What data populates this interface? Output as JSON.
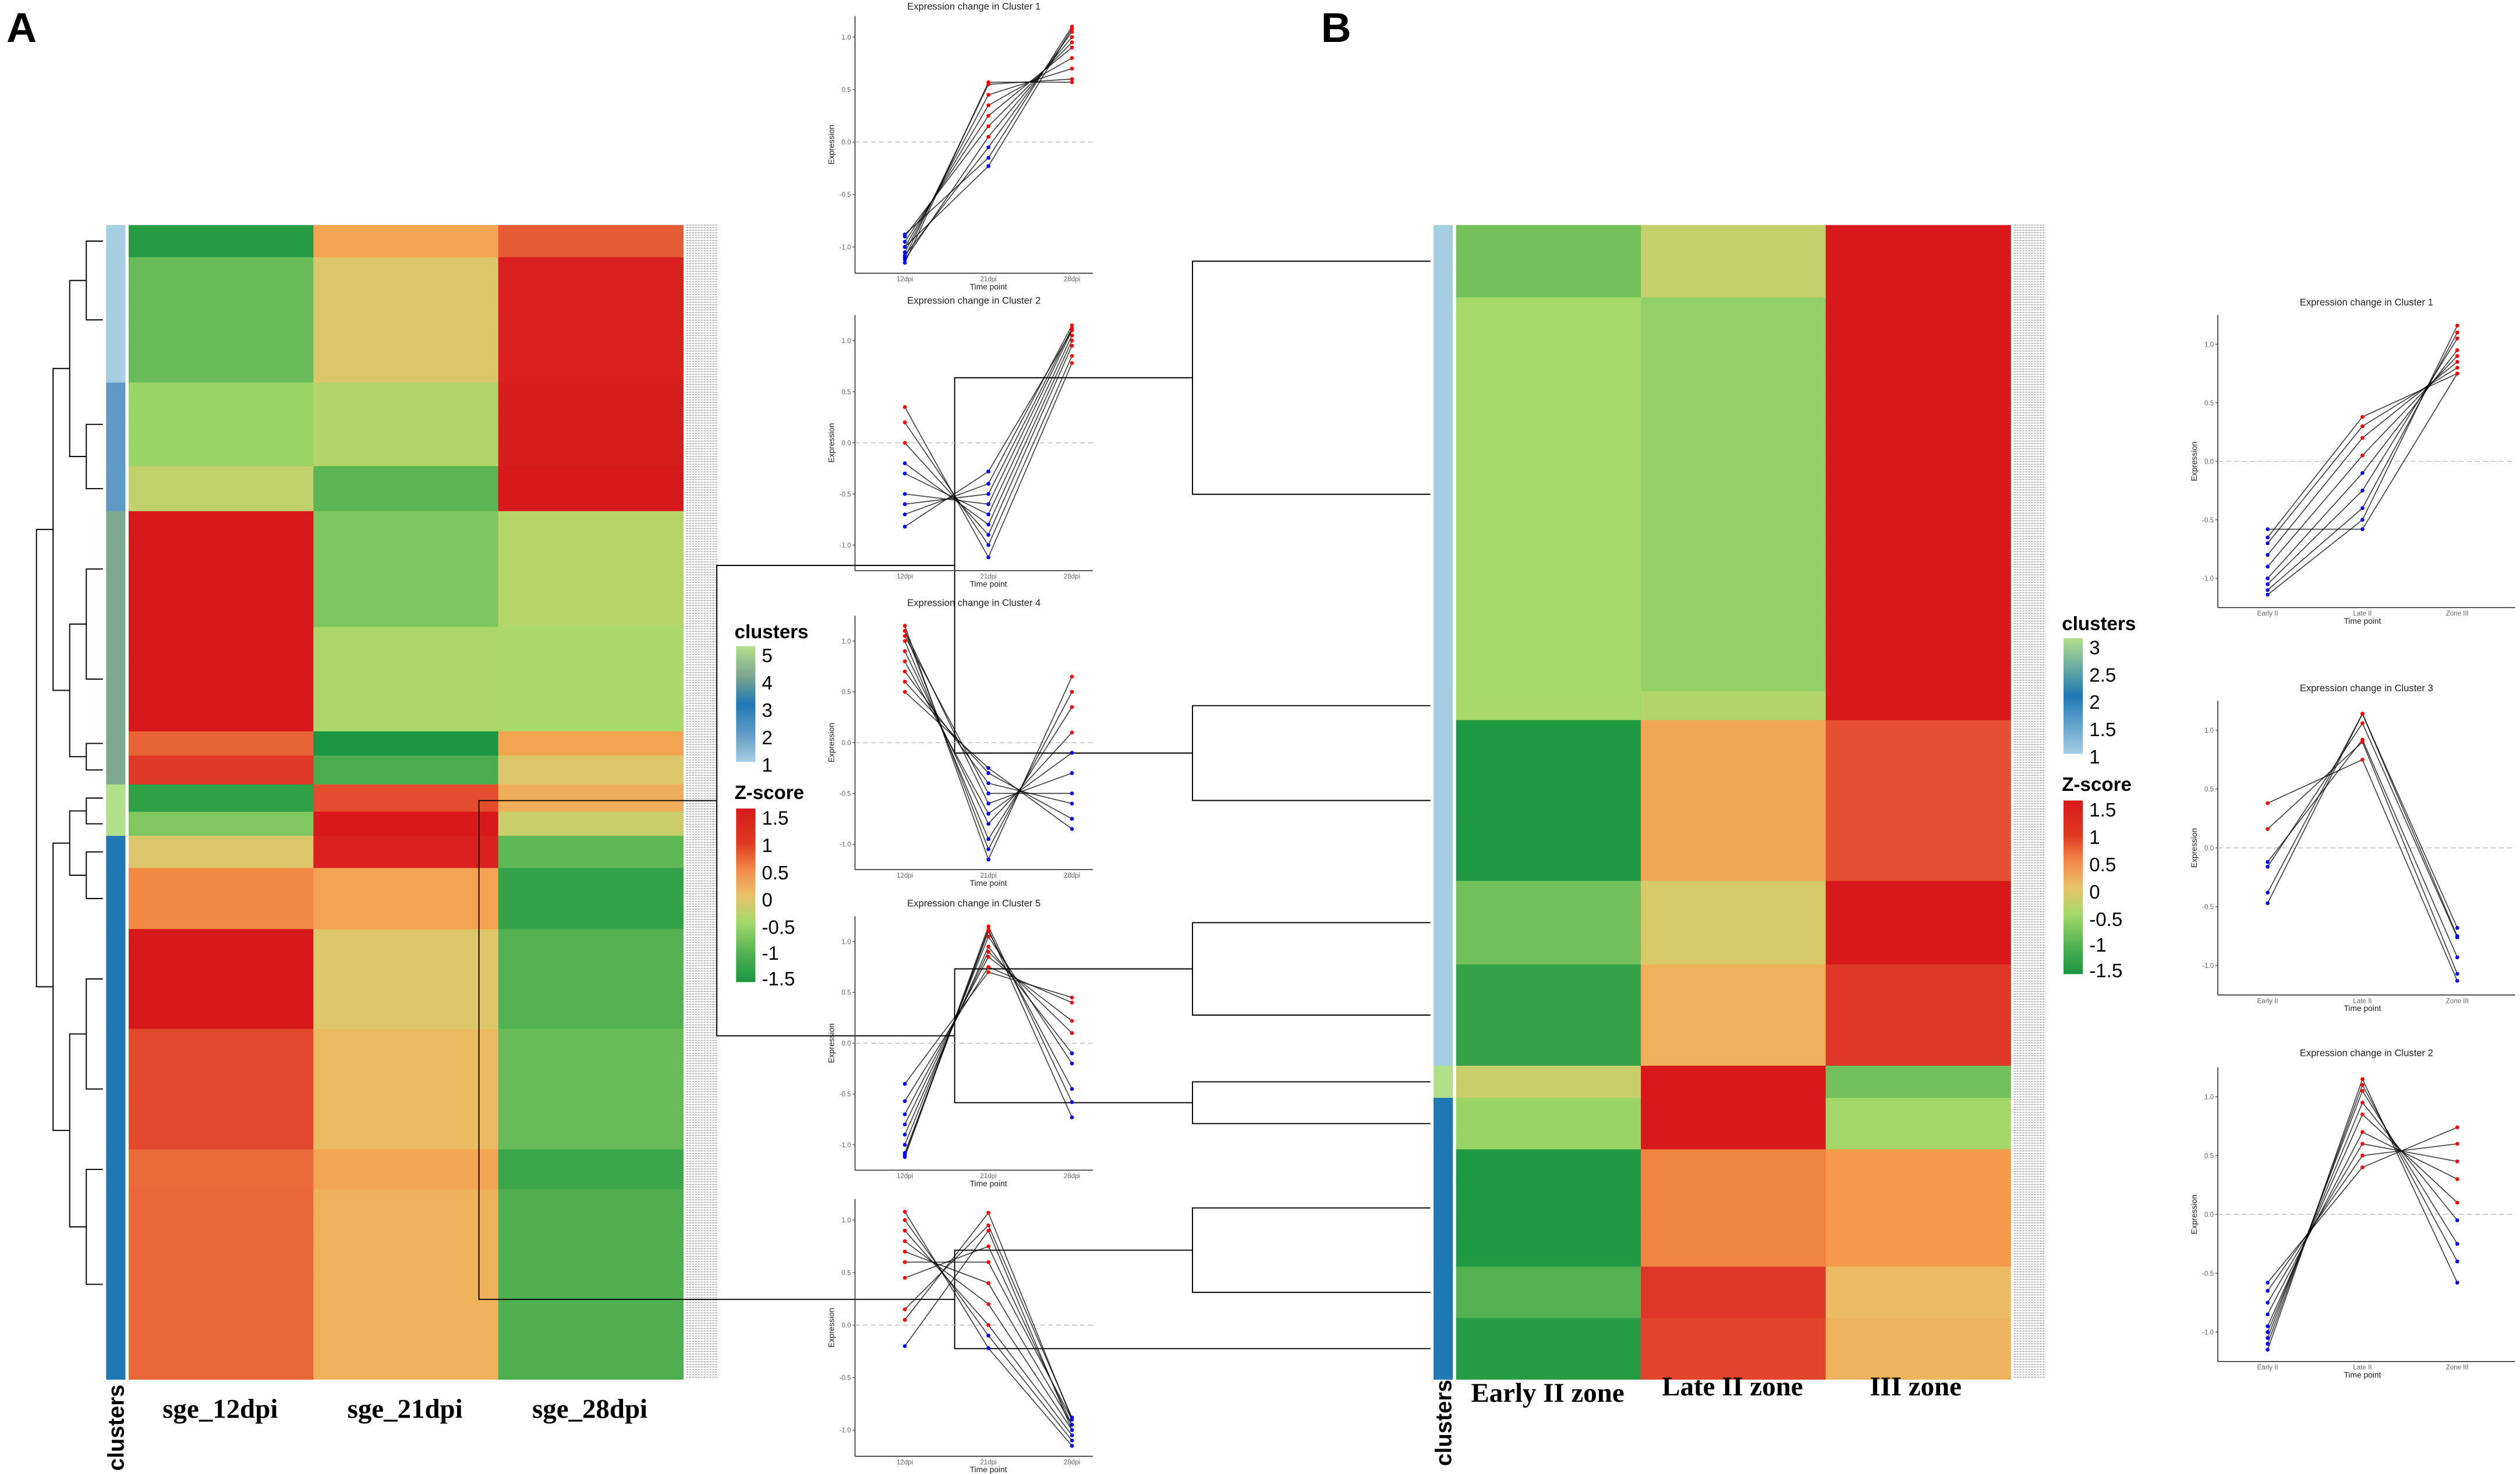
{
  "panels": {
    "a": "A",
    "b": "B"
  },
  "heatmap_a": {
    "columns": [
      "sge_12dpi",
      "sge_21dpi",
      "sge_28dpi"
    ],
    "cluster_axis_label": "clusters",
    "rows": [
      {
        "cluster": 1,
        "span": 20,
        "z": [
          -1.3,
          0.4,
          1.0
        ]
      },
      {
        "cluster": 1,
        "span": 78,
        "z": [
          -1.0,
          0.0,
          1.2
        ]
      },
      {
        "cluster": 2,
        "span": 52,
        "z": [
          -0.8,
          -0.5,
          1.4
        ]
      },
      {
        "cluster": 2,
        "span": 28,
        "z": [
          -0.3,
          -1.2,
          1.3
        ]
      },
      {
        "cluster": 4,
        "span": 72,
        "z": [
          1.5,
          -0.8,
          -0.6
        ]
      },
      {
        "cluster": 4,
        "span": 65,
        "z": [
          1.5,
          -0.6,
          -0.5
        ]
      },
      {
        "cluster": 4,
        "span": 15,
        "z": [
          0.9,
          -1.4,
          0.4
        ]
      },
      {
        "cluster": 4,
        "span": 18,
        "z": [
          1.0,
          -1.2,
          0.0
        ]
      },
      {
        "cluster": 5,
        "span": 17,
        "z": [
          -1.3,
          0.9,
          0.3
        ]
      },
      {
        "cluster": 5,
        "span": 15,
        "z": [
          -0.9,
          1.4,
          -0.4
        ]
      },
      {
        "cluster": 3,
        "span": 20,
        "z": [
          0.0,
          1.2,
          -1.0
        ]
      },
      {
        "cluster": 3,
        "span": 38,
        "z": [
          0.7,
          0.6,
          -1.4
        ]
      },
      {
        "cluster": 3,
        "span": 62,
        "z": [
          1.2,
          -0.1,
          -1.0
        ]
      },
      {
        "cluster": 3,
        "span": 75,
        "z": [
          1.1,
          0.0,
          -1.0
        ]
      },
      {
        "cluster": 3,
        "span": 25,
        "z": [
          0.8,
          0.5,
          -1.4
        ]
      },
      {
        "cluster": 3,
        "span": 118,
        "z": [
          1.0,
          0.2,
          -1.1
        ]
      }
    ],
    "legend": {
      "clusters_title": "clusters",
      "clusters_ticks": [
        "5",
        "4",
        "3",
        "2",
        "1"
      ],
      "zscore_title": "Z-score",
      "zscore_ticks": [
        "1.5",
        "1",
        "0.5",
        "0",
        "-0.5",
        "-1",
        "-1.5"
      ]
    }
  },
  "heatmap_b": {
    "columns": [
      "Early II zone",
      "Late II zone",
      "III zone"
    ],
    "cluster_axis_label": "clusters",
    "rows": [
      {
        "cluster": 1,
        "span": 45,
        "z": [
          -0.8,
          -0.4,
          1.5
        ]
      },
      {
        "cluster": 1,
        "span": 245,
        "z": [
          -0.6,
          -0.6,
          1.5
        ]
      },
      {
        "cluster": 1,
        "span": 18,
        "z": [
          -0.7,
          -0.5,
          1.5
        ]
      },
      {
        "cluster": 1,
        "span": 100,
        "z": [
          -1.4,
          0.3,
          1.0
        ]
      },
      {
        "cluster": 1,
        "span": 52,
        "z": [
          -1.0,
          -0.1,
          1.3
        ]
      },
      {
        "cluster": 1,
        "span": 63,
        "z": [
          -1.2,
          0.2,
          1.2
        ]
      },
      {
        "cluster": 3,
        "span": 20,
        "z": [
          -0.3,
          1.5,
          -1.0
        ]
      },
      {
        "cluster": 2,
        "span": 32,
        "z": [
          -0.8,
          1.4,
          -0.5
        ]
      },
      {
        "cluster": 2,
        "span": 73,
        "z": [
          -1.4,
          0.6,
          0.6
        ]
      },
      {
        "cluster": 2,
        "span": 32,
        "z": [
          -1.2,
          1.2,
          0.0
        ]
      },
      {
        "cluster": 2,
        "span": 38,
        "z": [
          -1.3,
          1.0,
          0.3
        ]
      }
    ],
    "legend": {
      "clusters_title": "clusters",
      "clusters_ticks": [
        "3",
        "2.5",
        "2",
        "1.5",
        "1"
      ],
      "zscore_title": "Z-score",
      "zscore_ticks": [
        "1.5",
        "1",
        "0.5",
        "0",
        "-0.5",
        "-1",
        "-1.5"
      ]
    }
  },
  "colors": {
    "z_low": "#1a9641",
    "z_midlow": "#a6d96a",
    "z_mid": "#e8c36a",
    "z_midhigh": "#f59a4a",
    "z_high": "#d7191c",
    "cluster_1": "#a6cee3",
    "cluster_2": "#5f9ac4",
    "cluster_3": "#1f78b4",
    "cluster_4": "#7fa890",
    "cluster_5": "#b2df8a",
    "b_cluster_1": "#a6cee3",
    "b_cluster_2": "#1f78b4",
    "b_cluster_3": "#b2df8a",
    "point_up": "#ff0000",
    "point_down": "#0000ff"
  },
  "chart_data": [
    {
      "type": "line",
      "panel": "A",
      "title": "Expression change in Cluster 1",
      "xlabel": "Time point",
      "ylabel": "Expression",
      "x": [
        "12dpi",
        "21dpi",
        "28dpi"
      ],
      "yticks": [
        "1.0",
        "0.5",
        "0.0",
        "-0.5",
        "-1.0"
      ],
      "ylim": [
        -1.25,
        1.2
      ],
      "lines": [
        [
          -1.15,
          0.57,
          0.57
        ],
        [
          -1.1,
          0.55,
          0.6
        ],
        [
          -1.05,
          0.45,
          0.7
        ],
        [
          -1.0,
          0.35,
          0.8
        ],
        [
          -0.95,
          0.25,
          0.9
        ],
        [
          -0.9,
          0.15,
          0.95
        ],
        [
          -1.12,
          0.05,
          1.0
        ],
        [
          -1.08,
          -0.05,
          1.05
        ],
        [
          -0.88,
          -0.15,
          1.1
        ],
        [
          -1.0,
          -0.23,
          1.08
        ]
      ]
    },
    {
      "type": "line",
      "panel": "A",
      "title": "Expression change in Cluster 2",
      "xlabel": "Time point",
      "ylabel": "Expression",
      "x": [
        "12dpi",
        "21dpi",
        "28dpi"
      ],
      "yticks": [
        "1.0",
        "0.5",
        "0.0",
        "-0.5",
        "-1.0"
      ],
      "ylim": [
        -1.25,
        1.25
      ],
      "lines": [
        [
          0.35,
          -1.12,
          0.78
        ],
        [
          0.2,
          -1.0,
          0.85
        ],
        [
          0.0,
          -0.9,
          0.95
        ],
        [
          -0.2,
          -0.8,
          1.0
        ],
        [
          -0.3,
          -0.7,
          1.05
        ],
        [
          -0.5,
          -0.6,
          1.1
        ],
        [
          -0.6,
          -0.5,
          1.12
        ],
        [
          -0.7,
          -0.4,
          1.15
        ],
        [
          -0.82,
          -0.28,
          1.1
        ]
      ]
    },
    {
      "type": "line",
      "panel": "A",
      "title": "Expression change in Cluster 4",
      "xlabel": "Time point",
      "ylabel": "Expression",
      "x": [
        "12dpi",
        "21dpi",
        "28dpi"
      ],
      "yticks": [
        "1.0",
        "0.5",
        "0.0",
        "-0.5",
        "-1.0"
      ],
      "ylim": [
        -1.25,
        1.25
      ],
      "lines": [
        [
          1.15,
          -1.15,
          0.65
        ],
        [
          1.1,
          -1.05,
          0.5
        ],
        [
          1.0,
          -0.95,
          0.35
        ],
        [
          0.9,
          -0.8,
          0.1
        ],
        [
          0.8,
          -0.7,
          -0.1
        ],
        [
          1.1,
          -0.6,
          -0.3
        ],
        [
          1.05,
          -0.5,
          -0.5
        ],
        [
          0.7,
          -0.4,
          -0.6
        ],
        [
          0.6,
          -0.3,
          -0.75
        ],
        [
          0.5,
          -0.25,
          -0.85
        ]
      ]
    },
    {
      "type": "line",
      "panel": "A",
      "title": "Expression change in Cluster 5",
      "xlabel": "Time point",
      "ylabel": "Expression",
      "x": [
        "12dpi",
        "21dpi",
        "28dpi"
      ],
      "yticks": [
        "1.0",
        "0.5",
        "0.0",
        "-0.5",
        "-1.0"
      ],
      "ylim": [
        -1.25,
        1.25
      ],
      "lines": [
        [
          -0.4,
          0.7,
          0.45
        ],
        [
          -0.57,
          0.75,
          0.4
        ],
        [
          -0.7,
          0.85,
          0.22
        ],
        [
          -0.8,
          0.9,
          0.1
        ],
        [
          -0.9,
          0.95,
          -0.1
        ],
        [
          -1.0,
          1.05,
          -0.2
        ],
        [
          -1.08,
          1.1,
          -0.45
        ],
        [
          -1.12,
          1.15,
          -0.58
        ],
        [
          -1.1,
          1.12,
          -0.73
        ]
      ]
    },
    {
      "type": "line",
      "panel": "A",
      "title": "",
      "xlabel": "Time point",
      "ylabel": "Expression",
      "x": [
        "12dpi",
        "21dpi",
        "28dpi"
      ],
      "yticks": [
        "1.0",
        "0.5",
        "0.0",
        "-0.5",
        "-1.0"
      ],
      "ylim": [
        -1.25,
        1.2
      ],
      "lines": [
        [
          1.08,
          -0.22,
          -1.15
        ],
        [
          1.0,
          -0.1,
          -1.1
        ],
        [
          0.9,
          0.0,
          -1.05
        ],
        [
          0.8,
          0.2,
          -1.0
        ],
        [
          0.7,
          0.4,
          -0.95
        ],
        [
          0.6,
          0.6,
          -0.9
        ],
        [
          0.45,
          0.75,
          -0.95
        ],
        [
          0.15,
          0.95,
          -0.88
        ],
        [
          0.05,
          1.07,
          -0.9
        ],
        [
          -0.2,
          0.9,
          -1.0
        ]
      ]
    },
    {
      "type": "line",
      "panel": "B",
      "title": "Expression change in Cluster 1",
      "xlabel": "Time point",
      "ylabel": "Expression",
      "x": [
        "Early II",
        "Late  II",
        "Zone III"
      ],
      "yticks": [
        "1.0",
        "0.5",
        "0.0",
        "-0.5",
        "-1.0"
      ],
      "ylim": [
        -1.25,
        1.25
      ],
      "lines": [
        [
          -0.58,
          -0.58,
          0.75
        ],
        [
          -0.65,
          0.38,
          0.75
        ],
        [
          -0.7,
          0.3,
          0.8
        ],
        [
          -0.8,
          0.2,
          0.85
        ],
        [
          -0.9,
          0.05,
          0.9
        ],
        [
          -1.0,
          -0.1,
          0.95
        ],
        [
          -1.05,
          -0.25,
          1.05
        ],
        [
          -1.1,
          -0.4,
          1.1
        ],
        [
          -1.14,
          -0.5,
          1.16
        ]
      ]
    },
    {
      "type": "line",
      "panel": "B",
      "title": "Expression change in Cluster 3",
      "xlabel": "Time point",
      "ylabel": "Expression",
      "x": [
        "Early II",
        "Late  II",
        "Zone III"
      ],
      "yticks": [
        "1.0",
        "0.5",
        "0.0",
        "-0.5",
        "-1.0"
      ],
      "ylim": [
        -1.25,
        1.25
      ],
      "lines": [
        [
          0.38,
          0.75,
          -1.13
        ],
        [
          0.16,
          0.9,
          -1.07
        ],
        [
          -0.12,
          0.92,
          -0.93
        ],
        [
          -0.16,
          1.06,
          -0.76
        ],
        [
          -0.38,
          1.14,
          -0.68
        ],
        [
          -0.47,
          1.14,
          -0.75
        ]
      ]
    },
    {
      "type": "line",
      "panel": "B",
      "title": "Expression change in Cluster 2",
      "xlabel": "Time point",
      "ylabel": "Expression",
      "x": [
        "Early II",
        "Late  II",
        "Zone III"
      ],
      "yticks": [
        "1.0",
        "0.5",
        "0.0",
        "-0.5",
        "-1.0"
      ],
      "ylim": [
        -1.25,
        1.25
      ],
      "lines": [
        [
          -0.58,
          0.4,
          0.74
        ],
        [
          -0.65,
          0.5,
          0.6
        ],
        [
          -0.75,
          0.6,
          0.45
        ],
        [
          -0.85,
          0.7,
          0.3
        ],
        [
          -0.95,
          0.85,
          0.1
        ],
        [
          -1.0,
          0.95,
          -0.05
        ],
        [
          -1.05,
          1.05,
          -0.25
        ],
        [
          -1.1,
          1.1,
          -0.4
        ],
        [
          -1.15,
          1.15,
          -0.58
        ]
      ]
    }
  ]
}
